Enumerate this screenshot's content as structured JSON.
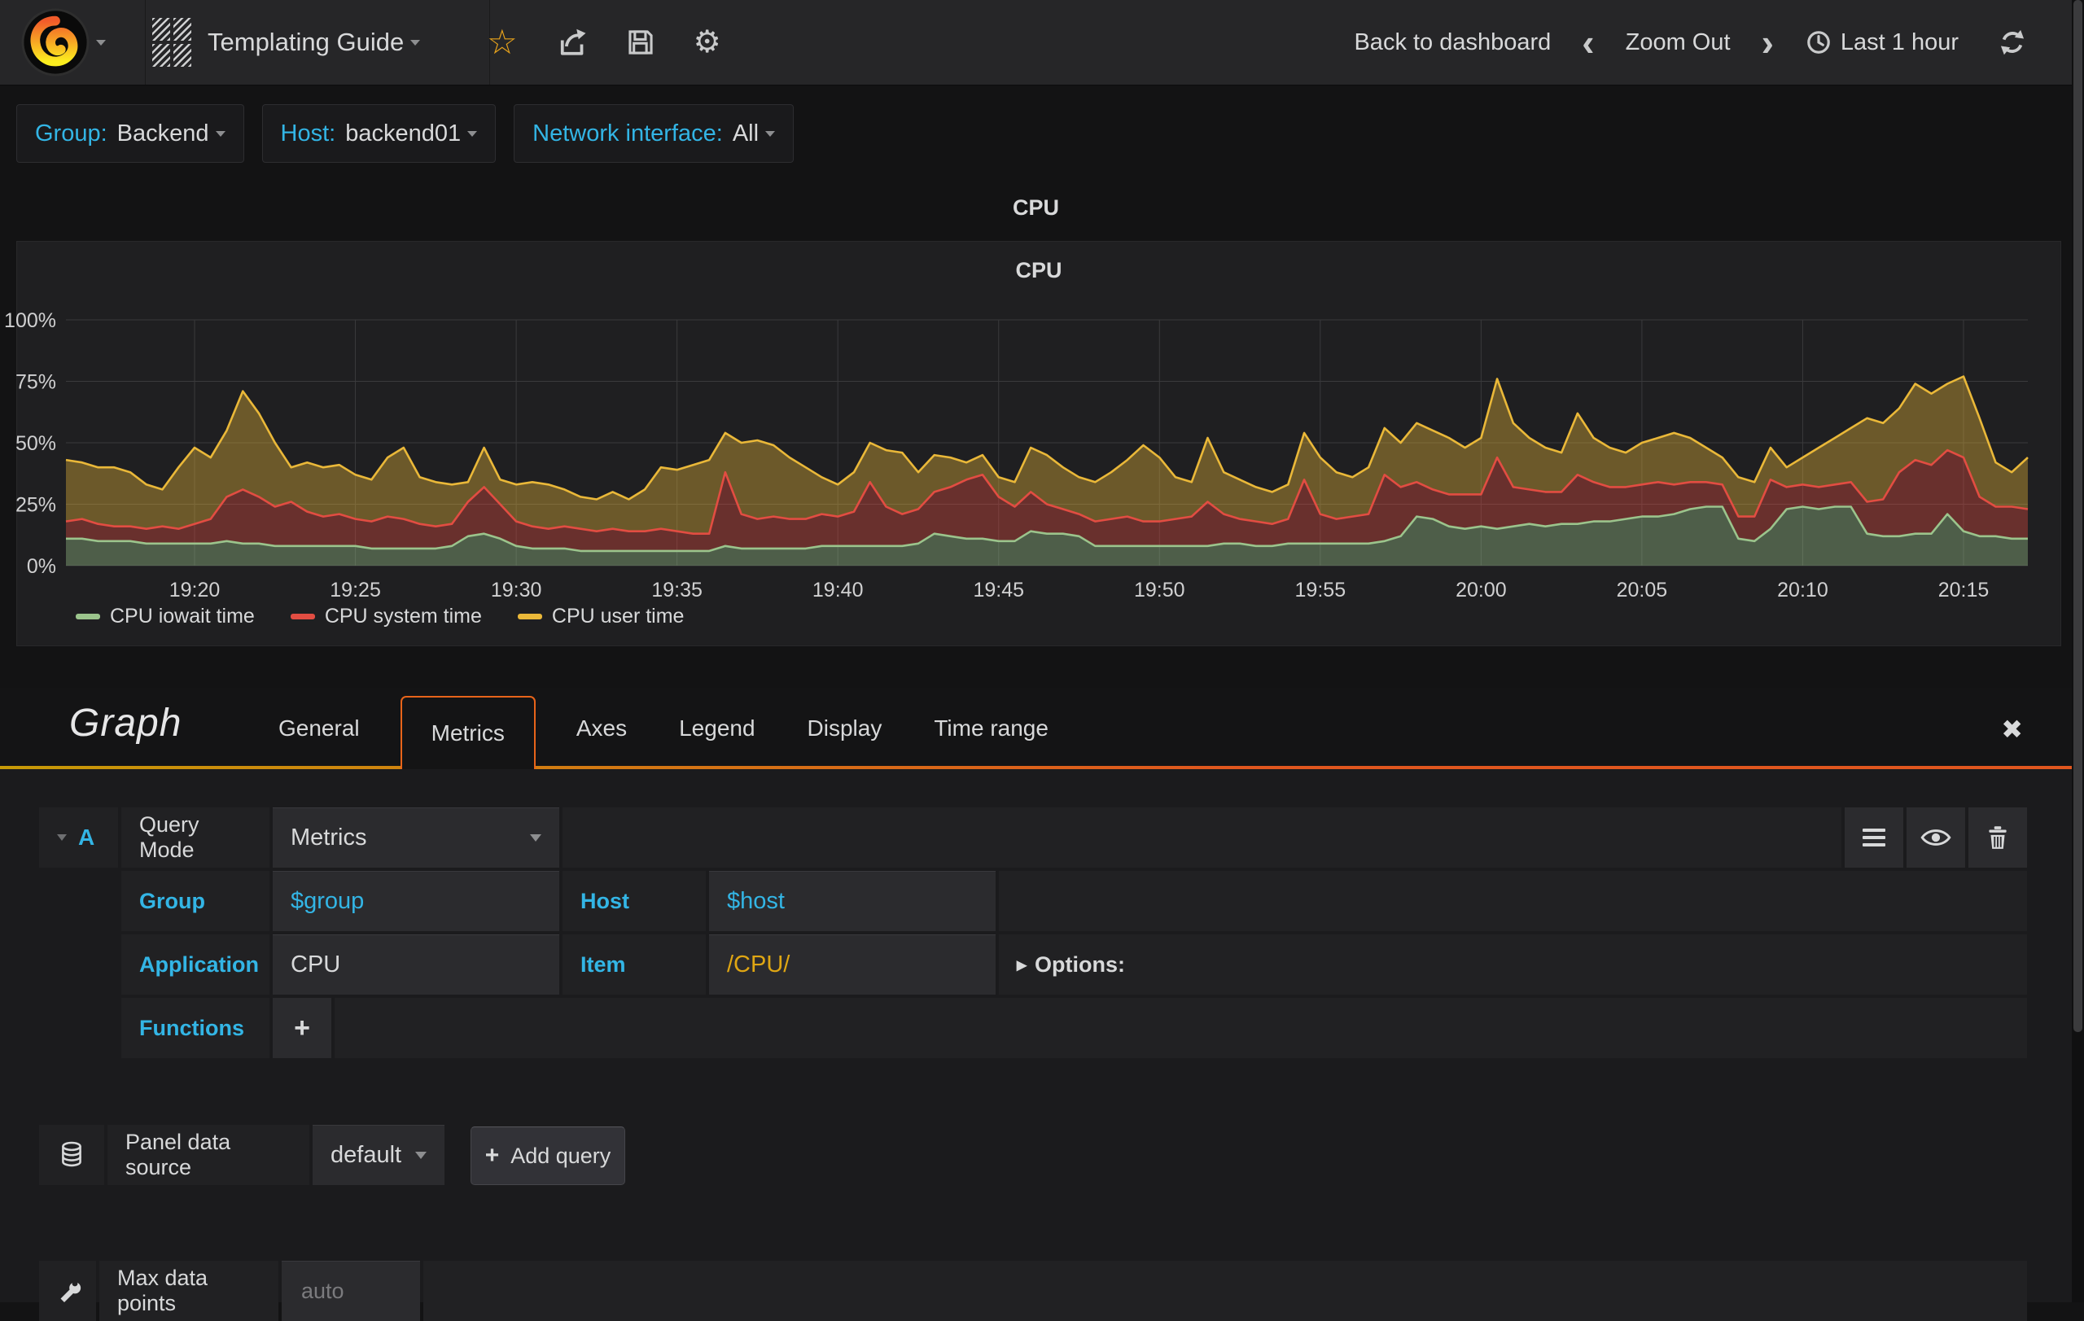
{
  "colors": {
    "pageBg": "#131314",
    "navbarBg": "#262628",
    "panelBg": "#1F1F21",
    "cyan": "#33B5E5",
    "text": "#D8D9DA",
    "orange": "#E8641A",
    "underFrom": "#C79A07",
    "underTo": "#E0561E",
    "gold": "#DFA613",
    "seriesGreen": "#9BC48C",
    "seriesRed": "#E24D42",
    "seriesYellow": "#EAB839"
  },
  "icons": {
    "caret-down": "▾",
    "options-arrow": "▸",
    "close": "✖",
    "star": "☆",
    "gear": "⚙",
    "chevron-left": "‹",
    "chevron-right": "›",
    "plus": "+"
  },
  "navbar": {
    "dashboard_title": "Templating Guide",
    "back_to_dashboard": "Back to dashboard",
    "zoom_out": "Zoom Out",
    "time_label": "Last 1 hour"
  },
  "variables": [
    {
      "label": "Group:",
      "value": "Backend"
    },
    {
      "label": "Host:",
      "value": "backend01"
    },
    {
      "label": "Network interface:",
      "value": "All"
    }
  ],
  "row": {
    "title": "CPU"
  },
  "panel": {
    "title": "CPU"
  },
  "chart_data": {
    "type": "area",
    "stacked": true,
    "title": "CPU",
    "unit": "percent",
    "ylim": [
      0,
      100
    ],
    "y_ticks": [
      "0%",
      "25%",
      "50%",
      "75%",
      "100%"
    ],
    "y_tick_values": [
      0,
      25,
      50,
      75,
      100
    ],
    "x_ticks": [
      "19:20",
      "19:25",
      "19:30",
      "19:35",
      "19:40",
      "19:45",
      "19:50",
      "19:55",
      "20:00",
      "20:05",
      "20:10",
      "20:15"
    ],
    "x_tick_minutes": [
      4,
      9,
      14,
      19,
      24,
      29,
      34,
      39,
      44,
      49,
      54,
      59
    ],
    "x_minutes_start": 0,
    "x_step_minutes": 0.5,
    "x_total_minutes": 61,
    "grid": true,
    "legend_position": "bottom",
    "series": [
      {
        "name": "CPU iowait time",
        "color": "#9BC48C",
        "values": [
          11,
          11,
          10,
          10,
          10,
          9,
          9,
          9,
          9,
          9,
          10,
          9,
          9,
          8,
          8,
          8,
          8,
          8,
          8,
          7,
          7,
          7,
          7,
          7,
          8,
          12,
          13,
          11,
          8,
          7,
          7,
          7,
          6,
          6,
          6,
          6,
          6,
          6,
          6,
          6,
          6,
          8,
          7,
          7,
          7,
          7,
          7,
          8,
          8,
          8,
          8,
          8,
          8,
          9,
          13,
          12,
          11,
          11,
          10,
          10,
          14,
          13,
          13,
          12,
          8,
          8,
          8,
          8,
          8,
          8,
          8,
          8,
          9,
          9,
          8,
          8,
          9,
          9,
          9,
          9,
          9,
          9,
          10,
          12,
          20,
          19,
          16,
          15,
          16,
          15,
          16,
          17,
          16,
          17,
          17,
          18,
          18,
          19,
          20,
          20,
          21,
          23,
          24,
          24,
          11,
          10,
          15,
          23,
          24,
          23,
          24,
          24,
          13,
          12,
          12,
          13,
          13,
          21,
          14,
          12,
          12,
          11,
          11
        ]
      },
      {
        "name": "CPU system time",
        "color": "#E24D42",
        "values": [
          7,
          8,
          7,
          6,
          6,
          6,
          7,
          6,
          8,
          10,
          18,
          22,
          19,
          16,
          18,
          14,
          12,
          13,
          11,
          11,
          13,
          12,
          10,
          9,
          9,
          14,
          19,
          14,
          10,
          9,
          8,
          9,
          9,
          8,
          9,
          8,
          8,
          9,
          8,
          7,
          7,
          30,
          14,
          12,
          13,
          12,
          12,
          13,
          12,
          14,
          26,
          16,
          13,
          14,
          17,
          20,
          24,
          26,
          18,
          14,
          16,
          12,
          10,
          9,
          10,
          11,
          12,
          10,
          10,
          11,
          12,
          18,
          12,
          10,
          10,
          9,
          10,
          26,
          12,
          10,
          11,
          12,
          27,
          20,
          14,
          12,
          13,
          14,
          13,
          29,
          16,
          14,
          14,
          13,
          20,
          16,
          14,
          13,
          13,
          14,
          12,
          11,
          10,
          9,
          9,
          10,
          20,
          9,
          9,
          9,
          9,
          10,
          13,
          15,
          26,
          30,
          28,
          26,
          30,
          16,
          12,
          13,
          12
        ]
      },
      {
        "name": "CPU user time",
        "color": "#EAB839",
        "values": [
          25,
          23,
          23,
          24,
          22,
          18,
          15,
          25,
          31,
          25,
          27,
          40,
          34,
          26,
          14,
          20,
          20,
          20,
          18,
          17,
          24,
          29,
          19,
          18,
          16,
          8,
          16,
          10,
          15,
          18,
          18,
          15,
          13,
          13,
          15,
          13,
          17,
          25,
          25,
          28,
          30,
          16,
          29,
          32,
          29,
          25,
          21,
          15,
          13,
          16,
          16,
          23,
          25,
          15,
          15,
          12,
          7,
          8,
          8,
          10,
          18,
          20,
          17,
          15,
          16,
          19,
          23,
          31,
          26,
          17,
          14,
          26,
          17,
          16,
          14,
          13,
          14,
          19,
          23,
          19,
          16,
          19,
          19,
          18,
          24,
          24,
          23,
          19,
          23,
          32,
          26,
          21,
          18,
          16,
          25,
          18,
          16,
          14,
          17,
          18,
          21,
          18,
          14,
          11,
          16,
          14,
          13,
          8,
          11,
          16,
          19,
          22,
          34,
          31,
          26,
          31,
          29,
          27,
          33,
          32,
          18,
          14,
          21
        ]
      }
    ]
  },
  "editor": {
    "panel_type_label": "Graph",
    "tabs": [
      {
        "label": "General",
        "active": false
      },
      {
        "label": "Metrics",
        "active": true
      },
      {
        "label": "Axes",
        "active": false
      },
      {
        "label": "Legend",
        "active": false
      },
      {
        "label": "Display",
        "active": false
      },
      {
        "label": "Time range",
        "active": false
      }
    ],
    "query": {
      "ref": "A",
      "mode_label": "Query Mode",
      "mode_value": "Metrics",
      "group_label": "Group",
      "group_value": "$group",
      "host_label": "Host",
      "host_value": "$host",
      "application_label": "Application",
      "application_value": "CPU",
      "item_label": "Item",
      "item_value": "/CPU/",
      "options_label": "Options:",
      "functions_label": "Functions",
      "add_function": "+"
    },
    "datasource": {
      "label": "Panel data source",
      "value": "default",
      "add_query": "Add query"
    },
    "max_data_points": {
      "label": "Max data points",
      "placeholder": "auto"
    }
  }
}
